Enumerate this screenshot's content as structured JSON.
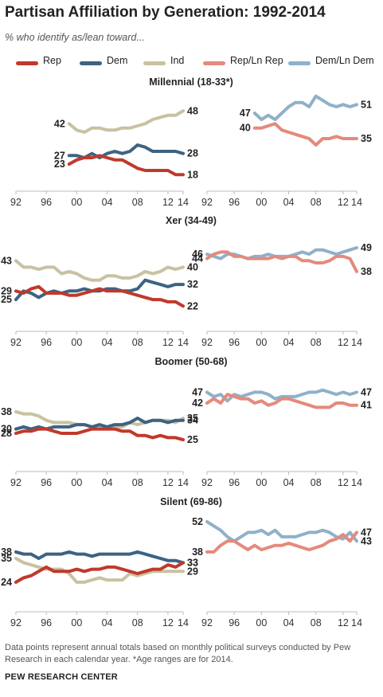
{
  "title": "Partisan Affiliation by Generation: 1992-2014",
  "subtitle": "% who identify as/lean toward...",
  "legend": [
    {
      "label": "Rep",
      "color": "#c0392b"
    },
    {
      "label": "Dem",
      "color": "#3d6382"
    },
    {
      "label": "Ind",
      "color": "#c8c2a2"
    },
    {
      "label": "Rep/Ln Rep",
      "color": "#e48a7c"
    },
    {
      "label": "Dem/Ln Dem",
      "color": "#8fb1ca"
    }
  ],
  "x_tick_labels": [
    "92",
    "96",
    "00",
    "04",
    "08",
    "12",
    "14"
  ],
  "note": "Data points represent annual totals based on monthly political surveys conducted by Pew Research in each calendar year. *Age ranges are for 2014.",
  "source": "PEW RESEARCH CENTER",
  "chart_data": [
    {
      "type": "line",
      "title": "Millennial (18-33*)",
      "panel": "left",
      "xlim": [
        1992,
        2014
      ],
      "series": [
        {
          "name": "Ind",
          "x": [
            1999,
            2000,
            2001,
            2002,
            2003,
            2004,
            2005,
            2006,
            2007,
            2008,
            2009,
            2010,
            2011,
            2012,
            2013,
            2014
          ],
          "values": [
            42,
            39,
            38,
            40,
            40,
            39,
            39,
            40,
            40,
            41,
            42,
            44,
            45,
            46,
            46,
            48
          ],
          "end_label": "48",
          "start_label": "42"
        },
        {
          "name": "Dem",
          "x": [
            1999,
            2000,
            2001,
            2002,
            2003,
            2004,
            2005,
            2006,
            2007,
            2008,
            2009,
            2010,
            2011,
            2012,
            2013,
            2014
          ],
          "values": [
            27,
            27,
            26,
            28,
            26,
            28,
            29,
            28,
            29,
            32,
            31,
            29,
            29,
            29,
            29,
            28
          ],
          "end_label": "28",
          "start_label": "27"
        },
        {
          "name": "Rep",
          "x": [
            1999,
            2000,
            2001,
            2002,
            2003,
            2004,
            2005,
            2006,
            2007,
            2008,
            2009,
            2010,
            2011,
            2012,
            2013,
            2014
          ],
          "values": [
            23,
            25,
            26,
            26,
            27,
            26,
            25,
            25,
            23,
            21,
            20,
            20,
            20,
            20,
            18,
            18
          ],
          "end_label": "18",
          "start_label": "23"
        }
      ]
    },
    {
      "type": "line",
      "panel": "right",
      "xlim": [
        1992,
        2014
      ],
      "series": [
        {
          "name": "Dem/Ln Dem",
          "x": [
            1999,
            2000,
            2001,
            2002,
            2003,
            2004,
            2005,
            2006,
            2007,
            2008,
            2009,
            2010,
            2011,
            2012,
            2013,
            2014
          ],
          "values": [
            47,
            44,
            46,
            44,
            47,
            50,
            52,
            52,
            50,
            55,
            53,
            51,
            50,
            51,
            50,
            51
          ],
          "end_label": "51",
          "start_label": "47"
        },
        {
          "name": "Rep/Ln Rep",
          "x": [
            1999,
            2000,
            2001,
            2002,
            2003,
            2004,
            2005,
            2006,
            2007,
            2008,
            2009,
            2010,
            2011,
            2012,
            2013,
            2014
          ],
          "values": [
            40,
            40,
            41,
            42,
            39,
            38,
            37,
            36,
            35,
            32,
            35,
            35,
            36,
            35,
            35,
            35
          ],
          "end_label": "35",
          "start_label": "40"
        }
      ]
    },
    {
      "type": "line",
      "title": "Xer (34-49)",
      "panel": "left",
      "xlim": [
        1992,
        2014
      ],
      "series": [
        {
          "name": "Ind",
          "x": [
            1992,
            1993,
            1994,
            1995,
            1996,
            1997,
            1998,
            1999,
            2000,
            2001,
            2002,
            2003,
            2004,
            2005,
            2006,
            2007,
            2008,
            2009,
            2010,
            2011,
            2012,
            2013,
            2014
          ],
          "values": [
            43,
            40,
            40,
            39,
            40,
            40,
            37,
            38,
            37,
            35,
            34,
            34,
            36,
            36,
            35,
            35,
            36,
            38,
            37,
            38,
            40,
            39,
            40
          ],
          "end_label": "40",
          "start_label": "43"
        },
        {
          "name": "Dem",
          "x": [
            1992,
            1993,
            1994,
            1995,
            1996,
            1997,
            1998,
            1999,
            2000,
            2001,
            2002,
            2003,
            2004,
            2005,
            2006,
            2007,
            2008,
            2009,
            2010,
            2011,
            2012,
            2013,
            2014
          ],
          "values": [
            25,
            29,
            28,
            26,
            28,
            29,
            28,
            29,
            29,
            30,
            29,
            29,
            30,
            30,
            29,
            29,
            30,
            34,
            33,
            32,
            31,
            32,
            32
          ],
          "end_label": "32",
          "start_label": "25"
        },
        {
          "name": "Rep",
          "x": [
            1992,
            1993,
            1994,
            1995,
            1996,
            1997,
            1998,
            1999,
            2000,
            2001,
            2002,
            2003,
            2004,
            2005,
            2006,
            2007,
            2008,
            2009,
            2010,
            2011,
            2012,
            2013,
            2014
          ],
          "values": [
            29,
            28,
            30,
            31,
            28,
            28,
            28,
            27,
            27,
            28,
            29,
            30,
            29,
            29,
            29,
            28,
            27,
            26,
            25,
            25,
            24,
            24,
            22
          ],
          "end_label": "22",
          "start_label": "29"
        }
      ]
    },
    {
      "type": "line",
      "panel": "right",
      "xlim": [
        1992,
        2014
      ],
      "series": [
        {
          "name": "Dem/Ln Dem",
          "x": [
            1992,
            1993,
            1994,
            1995,
            1996,
            1997,
            1998,
            1999,
            2000,
            2001,
            2002,
            2003,
            2004,
            2005,
            2006,
            2007,
            2008,
            2009,
            2010,
            2011,
            2012,
            2013,
            2014
          ],
          "values": [
            46,
            45,
            44,
            46,
            46,
            45,
            44,
            45,
            45,
            46,
            45,
            45,
            45,
            46,
            47,
            46,
            48,
            48,
            47,
            46,
            47,
            48,
            49
          ],
          "end_label": "49",
          "start_label": "46"
        },
        {
          "name": "Rep/Ln Rep",
          "x": [
            1992,
            1993,
            1994,
            1995,
            1996,
            1997,
            1998,
            1999,
            2000,
            2001,
            2002,
            2003,
            2004,
            2005,
            2006,
            2007,
            2008,
            2009,
            2010,
            2011,
            2012,
            2013,
            2014
          ],
          "values": [
            44,
            46,
            47,
            47,
            45,
            45,
            44,
            44,
            44,
            44,
            45,
            44,
            45,
            45,
            43,
            43,
            42,
            42,
            43,
            45,
            45,
            44,
            38
          ],
          "end_label": "38",
          "start_label": "44"
        }
      ]
    },
    {
      "type": "line",
      "title": "Boomer (50-68)",
      "panel": "left",
      "xlim": [
        1992,
        2014
      ],
      "series": [
        {
          "name": "Ind",
          "x": [
            1992,
            1993,
            1994,
            1995,
            1996,
            1997,
            1998,
            1999,
            2000,
            2001,
            2002,
            2003,
            2004,
            2005,
            2006,
            2007,
            2008,
            2009,
            2010,
            2011,
            2012,
            2013,
            2014
          ],
          "values": [
            38,
            37,
            37,
            36,
            34,
            33,
            33,
            33,
            32,
            32,
            31,
            31,
            31,
            31,
            31,
            33,
            32,
            33,
            34,
            34,
            34,
            33,
            35
          ],
          "end_label": "35",
          "start_label": "38"
        },
        {
          "name": "Dem",
          "x": [
            1992,
            1993,
            1994,
            1995,
            1996,
            1997,
            1998,
            1999,
            2000,
            2001,
            2002,
            2003,
            2004,
            2005,
            2006,
            2007,
            2008,
            2009,
            2010,
            2011,
            2012,
            2013,
            2014
          ],
          "values": [
            30,
            31,
            30,
            31,
            30,
            31,
            31,
            31,
            32,
            32,
            31,
            32,
            31,
            32,
            32,
            33,
            35,
            33,
            34,
            34,
            33,
            34,
            34
          ],
          "end_label": "34",
          "start_label": "30"
        },
        {
          "name": "Rep",
          "x": [
            1992,
            1993,
            1994,
            1995,
            1996,
            1997,
            1998,
            1999,
            2000,
            2001,
            2002,
            2003,
            2004,
            2005,
            2006,
            2007,
            2008,
            2009,
            2010,
            2011,
            2012,
            2013,
            2014
          ],
          "values": [
            28,
            29,
            29,
            30,
            30,
            29,
            28,
            28,
            28,
            29,
            30,
            30,
            30,
            30,
            29,
            29,
            27,
            27,
            26,
            27,
            26,
            26,
            25
          ],
          "end_label": "25",
          "start_label": "28"
        }
      ]
    },
    {
      "type": "line",
      "panel": "right",
      "xlim": [
        1992,
        2014
      ],
      "series": [
        {
          "name": "Dem/Ln Dem",
          "x": [
            1992,
            1993,
            1994,
            1995,
            1996,
            1997,
            1998,
            1999,
            2000,
            2001,
            2002,
            2003,
            2004,
            2005,
            2006,
            2007,
            2008,
            2009,
            2010,
            2011,
            2012,
            2013,
            2014
          ],
          "values": [
            47,
            45,
            46,
            43,
            46,
            45,
            46,
            47,
            47,
            46,
            44,
            45,
            45,
            45,
            46,
            47,
            47,
            48,
            47,
            46,
            47,
            46,
            47
          ],
          "end_label": "47",
          "start_label": "47"
        },
        {
          "name": "Rep/Ln Rep",
          "x": [
            1992,
            1993,
            1994,
            1995,
            1996,
            1997,
            1998,
            1999,
            2000,
            2001,
            2002,
            2003,
            2004,
            2005,
            2006,
            2007,
            2008,
            2009,
            2010,
            2011,
            2012,
            2013,
            2014
          ],
          "values": [
            42,
            44,
            42,
            46,
            45,
            44,
            44,
            42,
            43,
            41,
            42,
            44,
            44,
            43,
            42,
            41,
            40,
            40,
            40,
            42,
            42,
            41,
            41
          ],
          "end_label": "41",
          "start_label": "42"
        }
      ]
    },
    {
      "type": "line",
      "title": "Silent (69-86)",
      "panel": "left",
      "xlim": [
        1992,
        2014
      ],
      "series": [
        {
          "name": "Ind",
          "x": [
            1992,
            1993,
            1994,
            1995,
            1996,
            1997,
            1998,
            1999,
            2000,
            2001,
            2002,
            2003,
            2004,
            2005,
            2006,
            2007,
            2008,
            2009,
            2010,
            2011,
            2012,
            2013,
            2014
          ],
          "values": [
            35,
            33,
            32,
            31,
            30,
            30,
            30,
            28,
            24,
            24,
            25,
            26,
            25,
            25,
            25,
            28,
            27,
            28,
            29,
            29,
            29,
            29,
            29
          ],
          "end_label": "29",
          "start_label": "35"
        },
        {
          "name": "Dem",
          "x": [
            1992,
            1993,
            1994,
            1995,
            1996,
            1997,
            1998,
            1999,
            2000,
            2001,
            2002,
            2003,
            2004,
            2005,
            2006,
            2007,
            2008,
            2009,
            2010,
            2011,
            2012,
            2013,
            2014
          ],
          "values": [
            38,
            37,
            37,
            35,
            37,
            37,
            37,
            38,
            37,
            37,
            36,
            37,
            37,
            37,
            37,
            37,
            38,
            37,
            36,
            35,
            34,
            34,
            33
          ],
          "end_label": "33",
          "start_label": "38"
        },
        {
          "name": "Rep",
          "x": [
            1992,
            1993,
            1994,
            1995,
            1996,
            1997,
            1998,
            1999,
            2000,
            2001,
            2002,
            2003,
            2004,
            2005,
            2006,
            2007,
            2008,
            2009,
            2010,
            2011,
            2012,
            2013,
            2014
          ],
          "values": [
            24,
            26,
            27,
            29,
            31,
            29,
            29,
            29,
            30,
            29,
            30,
            30,
            31,
            31,
            30,
            29,
            28,
            29,
            30,
            30,
            32,
            31,
            33
          ],
          "end_label": "33",
          "start_label": "24"
        }
      ]
    },
    {
      "type": "line",
      "panel": "right",
      "xlim": [
        1992,
        2014
      ],
      "series": [
        {
          "name": "Dem/Ln Dem",
          "x": [
            1992,
            1993,
            1994,
            1995,
            1996,
            1997,
            1998,
            1999,
            2000,
            2001,
            2002,
            2003,
            2004,
            2005,
            2006,
            2007,
            2008,
            2009,
            2010,
            2011,
            2012,
            2013,
            2014
          ],
          "values": [
            52,
            50,
            48,
            45,
            43,
            45,
            47,
            47,
            48,
            46,
            48,
            45,
            45,
            45,
            46,
            47,
            47,
            48,
            47,
            45,
            44,
            47,
            43
          ],
          "end_label": "43",
          "start_label": "52"
        },
        {
          "name": "Rep/Ln Rep",
          "x": [
            1992,
            1993,
            1994,
            1995,
            1996,
            1997,
            1998,
            1999,
            2000,
            2001,
            2002,
            2003,
            2004,
            2005,
            2006,
            2007,
            2008,
            2009,
            2010,
            2011,
            2012,
            2013,
            2014
          ],
          "values": [
            38,
            38,
            41,
            43,
            43,
            41,
            39,
            41,
            39,
            40,
            41,
            41,
            42,
            41,
            40,
            39,
            40,
            41,
            43,
            44,
            46,
            43,
            47
          ],
          "end_label": "47",
          "start_label": "38"
        }
      ]
    }
  ]
}
